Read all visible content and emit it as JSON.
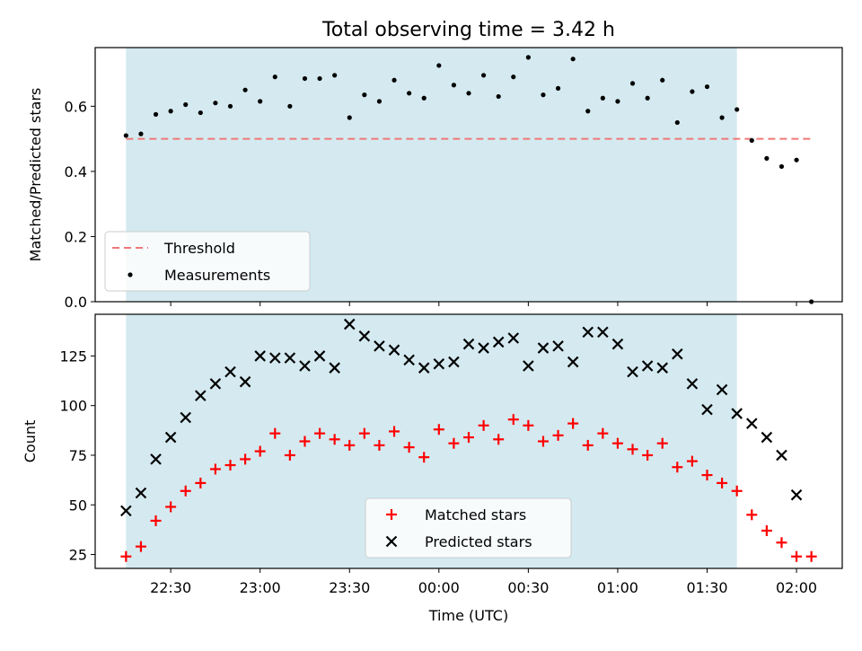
{
  "chart_data": [
    {
      "type": "scatter",
      "title": "Total observing time = 3.42 h",
      "xlabel": "",
      "ylabel": "Matched/Predicted stars",
      "ylim": [
        0,
        0.78
      ],
      "yticks": [
        "0.0",
        "0.2",
        "0.4",
        "0.6"
      ],
      "shaded_window": [
        "22:15",
        "01:40"
      ],
      "shaded_color": "#d4eaf0",
      "threshold": {
        "name": "Threshold",
        "value": 0.5,
        "x_start": "22:15",
        "x_end": "02:05",
        "color": "#f07878"
      },
      "series": [
        {
          "name": "Measurements",
          "color": "#000000",
          "points": [
            [
              "22:15",
              0.51
            ],
            [
              "22:20",
              0.515
            ],
            [
              "22:25",
              0.575
            ],
            [
              "22:30",
              0.585
            ],
            [
              "22:35",
              0.605
            ],
            [
              "22:40",
              0.58
            ],
            [
              "22:45",
              0.61
            ],
            [
              "22:50",
              0.6
            ],
            [
              "22:55",
              0.65
            ],
            [
              "23:00",
              0.615
            ],
            [
              "23:05",
              0.69
            ],
            [
              "23:10",
              0.6
            ],
            [
              "23:15",
              0.685
            ],
            [
              "23:20",
              0.685
            ],
            [
              "23:25",
              0.695
            ],
            [
              "23:30",
              0.565
            ],
            [
              "23:35",
              0.635
            ],
            [
              "23:40",
              0.615
            ],
            [
              "23:45",
              0.68
            ],
            [
              "23:50",
              0.64
            ],
            [
              "23:55",
              0.625
            ],
            [
              "00:00",
              0.725
            ],
            [
              "00:05",
              0.665
            ],
            [
              "00:10",
              0.64
            ],
            [
              "00:15",
              0.695
            ],
            [
              "00:20",
              0.63
            ],
            [
              "00:25",
              0.69
            ],
            [
              "00:30",
              0.75
            ],
            [
              "00:35",
              0.635
            ],
            [
              "00:40",
              0.655
            ],
            [
              "00:45",
              0.745
            ],
            [
              "00:50",
              0.585
            ],
            [
              "00:55",
              0.625
            ],
            [
              "01:00",
              0.615
            ],
            [
              "01:05",
              0.67
            ],
            [
              "01:10",
              0.625
            ],
            [
              "01:15",
              0.68
            ],
            [
              "01:20",
              0.55
            ],
            [
              "01:25",
              0.645
            ],
            [
              "01:30",
              0.66
            ],
            [
              "01:35",
              0.565
            ],
            [
              "01:40",
              0.59
            ],
            [
              "01:45",
              0.495
            ],
            [
              "01:50",
              0.44
            ],
            [
              "01:55",
              0.415
            ],
            [
              "02:00",
              0.435
            ],
            [
              "02:05",
              0.0
            ]
          ]
        }
      ],
      "legend": {
        "placement": "lower-left",
        "entries": [
          "Threshold",
          "Measurements"
        ]
      }
    },
    {
      "type": "scatter",
      "title": "",
      "xlabel": "Time (UTC)",
      "ylabel": "Count",
      "ylim": [
        18,
        146
      ],
      "yticks": [
        "25",
        "50",
        "75",
        "100",
        "125"
      ],
      "xticks": [
        "22:30",
        "23:00",
        "23:30",
        "00:00",
        "00:30",
        "01:00",
        "01:30",
        "02:00"
      ],
      "shaded_window": [
        "22:15",
        "01:40"
      ],
      "shaded_color": "#d4eaf0",
      "x_times": [
        "22:15",
        "22:20",
        "22:25",
        "22:30",
        "22:35",
        "22:40",
        "22:45",
        "22:50",
        "22:55",
        "23:00",
        "23:05",
        "23:10",
        "23:15",
        "23:20",
        "23:25",
        "23:30",
        "23:35",
        "23:40",
        "23:45",
        "23:50",
        "23:55",
        "00:00",
        "00:05",
        "00:10",
        "00:15",
        "00:20",
        "00:25",
        "00:30",
        "00:35",
        "00:40",
        "00:45",
        "00:50",
        "00:55",
        "01:00",
        "01:05",
        "01:10",
        "01:15",
        "01:20",
        "01:25",
        "01:30",
        "01:35",
        "01:40",
        "01:45",
        "01:50",
        "01:55",
        "02:00",
        "02:05"
      ],
      "series": [
        {
          "name": "Matched stars",
          "marker": "plus",
          "color": "#ff0000",
          "values": [
            24,
            29,
            42,
            49,
            57,
            61,
            68,
            70,
            73,
            77,
            86,
            75,
            82,
            86,
            83,
            80,
            86,
            80,
            87,
            79,
            74,
            88,
            81,
            84,
            90,
            83,
            93,
            90,
            82,
            85,
            91,
            80,
            86,
            81,
            78,
            75,
            81,
            69,
            72,
            65,
            61,
            57,
            45,
            37,
            31,
            24,
            24
          ]
        },
        {
          "name": "Predicted stars",
          "marker": "x",
          "color": "#000000",
          "values": [
            47,
            56,
            73,
            84,
            94,
            105,
            111,
            117,
            112,
            125,
            124,
            124,
            120,
            125,
            119,
            141,
            135,
            130,
            128,
            123,
            119,
            121,
            122,
            131,
            129,
            132,
            134,
            120,
            129,
            130,
            122,
            137,
            137,
            131,
            117,
            120,
            119,
            126,
            111,
            98,
            108,
            96,
            91,
            84,
            75,
            55,
            null
          ]
        }
      ],
      "legend": {
        "placement": "lower-center",
        "entries": [
          "Matched stars",
          "Predicted stars"
        ]
      }
    }
  ]
}
